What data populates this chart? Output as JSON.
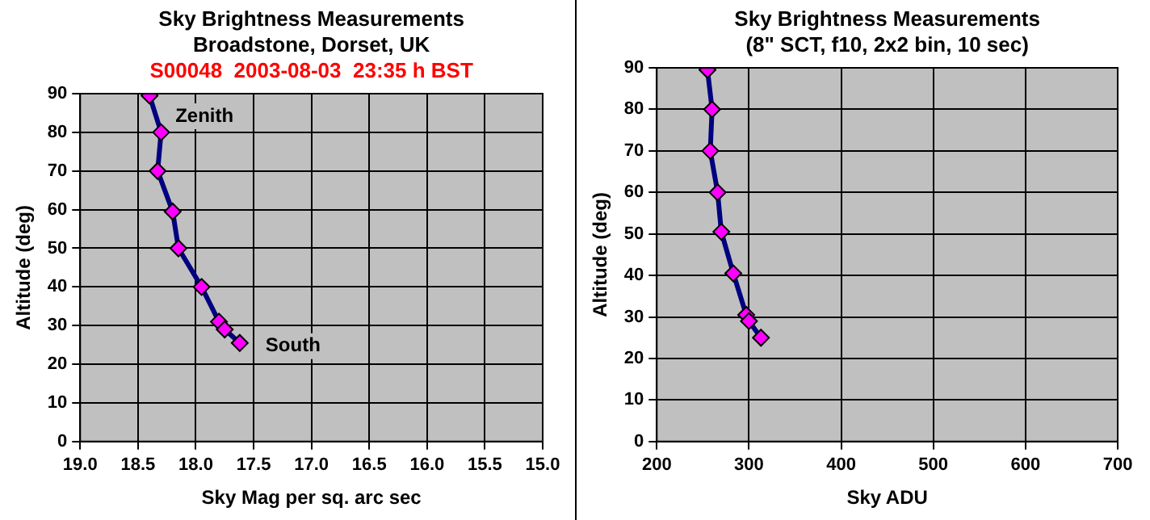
{
  "chart_data": [
    {
      "type": "line",
      "title": "Sky Brightness Measurements",
      "subtitle": "Broadstone, Dorset, UK",
      "xlabel": "Sky Mag per sq. arc sec",
      "ylabel": "Altitude (deg)",
      "annotations": [
        "S00048  2003-08-03  23:35 h BST",
        {
          "text": "Zenith",
          "x": 18.4,
          "y": 89.5
        },
        {
          "text": "South",
          "x": 17.62,
          "y": 25.5
        }
      ],
      "x": [
        18.4,
        18.3,
        18.33,
        18.2,
        18.15,
        17.95,
        17.8,
        17.75,
        17.62
      ],
      "series": [
        {
          "color": "#000080",
          "values": [
            89.5,
            80,
            70,
            59.5,
            50,
            40,
            31,
            29,
            25.5
          ]
        }
      ],
      "xlim": [
        19,
        15
      ],
      "xticks": [
        {
          "value": 19,
          "label": "19.0"
        },
        {
          "value": 18.5,
          "label": "18.5"
        },
        {
          "value": 18,
          "label": "18.0"
        },
        {
          "value": 17.5,
          "label": "17.5"
        },
        {
          "value": 17,
          "label": "17.0"
        },
        {
          "value": 16.5,
          "label": "16.5"
        },
        {
          "value": 16,
          "label": "16.0"
        },
        {
          "value": 15.5,
          "label": "15.5"
        },
        {
          "value": 15,
          "label": "15.0"
        }
      ],
      "ylim": [
        0,
        90
      ],
      "yticks": [
        0,
        10,
        20,
        30,
        40,
        50,
        60,
        70,
        80,
        90
      ],
      "grid": true,
      "marker": "diamond"
    },
    {
      "type": "line",
      "title": "Sky Brightness Measurements",
      "subtitle": "(8\" SCT, f10, 2x2 bin, 10 sec)",
      "xlabel": "Sky ADU",
      "ylabel": "Altitude (deg)",
      "x": [
        255,
        260,
        258,
        266,
        270,
        283,
        297,
        300,
        313
      ],
      "series": [
        {
          "color": "#000080",
          "values": [
            89.5,
            80,
            70,
            60,
            50.5,
            40.5,
            30.5,
            29,
            25
          ]
        }
      ],
      "xlim": [
        200,
        700
      ],
      "xticks": [
        200,
        300,
        400,
        500,
        600,
        700
      ],
      "ylim": [
        0,
        90
      ],
      "yticks": [
        0,
        10,
        20,
        30,
        40,
        50,
        60,
        70,
        80,
        90
      ],
      "grid": true,
      "marker": "diamond"
    }
  ]
}
